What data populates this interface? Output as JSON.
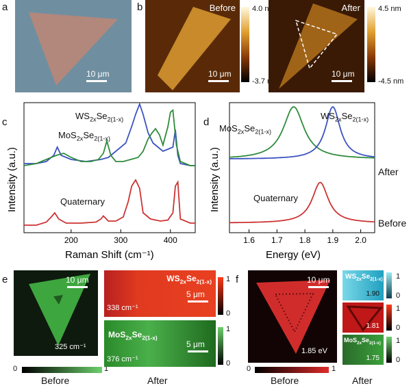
{
  "panels": {
    "a": {
      "label": "a",
      "scale": "10 μm"
    },
    "b": {
      "label": "b",
      "before_title": "Before",
      "after_title": "After",
      "scale_before": "10 μm",
      "scale_after": "10 μm",
      "cb_before_max": "4.0 nm",
      "cb_before_min": "-3.7 nm",
      "cb_after_max": "4.5 nm",
      "cb_after_min": "-4.5 nm"
    },
    "c": {
      "label": "c"
    },
    "d": {
      "label": "d"
    },
    "e": {
      "label": "e",
      "scale_main": "10 μm",
      "main_value": "325 cm⁻¹",
      "ws_value": "338 cm⁻¹",
      "mos_value": "376 cm⁻¹",
      "ws_scale": "5 μm",
      "mos_scale": "5 μm",
      "cb_min": "0",
      "cb_max": "1",
      "ws_cb_min": "0",
      "ws_cb_max": "1",
      "mos_cb_min": "0",
      "mos_cb_max": "1",
      "before": "Before",
      "after": "After"
    },
    "f": {
      "label": "f",
      "scale_main": "10 μm",
      "main_value": "1.85 eV",
      "v1": "1.90",
      "v2": "1.81",
      "v3": "1.75",
      "cb_min": "0",
      "cb_max": "1",
      "cb1_max": "1",
      "cb1_min": "0",
      "cb2_max": "1",
      "cb2_min": "0",
      "cb3_max": "1",
      "cb3_min": "0",
      "before": "Before",
      "after": "After"
    }
  },
  "labels": {
    "ws_main": "WS",
    "ws_sub1": "2x",
    "ws_mid": "Se",
    "ws_sub2": "2(1-x)",
    "mos_main": "MoS",
    "mos_sub1": "2x",
    "mos_mid": "Se",
    "mos_sub2": "2(1-x)"
  },
  "chart_data": [
    {
      "type": "line",
      "title": "",
      "xlabel": "Raman Shift (cm⁻¹)",
      "ylabel": "Intensity (a.u.)",
      "xlim": [
        105,
        450
      ],
      "xticks": [
        "200",
        "300",
        "400"
      ],
      "annotations": [
        "WS2xSe2(1-x)",
        "MoS2xSe2(1-x)",
        "Quaternary"
      ],
      "series": [
        {
          "name": "WS2xSe2(1-x)",
          "color": "#3b52c0",
          "x": [
            105,
            130,
            150,
            165,
            172,
            180,
            200,
            230,
            260,
            275,
            290,
            310,
            322,
            330,
            338,
            345,
            355,
            365,
            375,
            385,
            395,
            405,
            410,
            415,
            420,
            440,
            450
          ],
          "y": [
            0.62,
            0.62,
            0.64,
            0.7,
            0.78,
            0.7,
            0.66,
            0.64,
            0.66,
            0.68,
            0.74,
            0.82,
            0.98,
            1.1,
            1.2,
            1.1,
            0.92,
            0.82,
            0.78,
            0.74,
            0.76,
            0.78,
            0.95,
            0.7,
            0.62,
            0.6,
            0.6
          ]
        },
        {
          "name": "MoS2xSe2(1-x)",
          "color": "#2e8b3c",
          "x": [
            105,
            130,
            150,
            170,
            185,
            200,
            220,
            240,
            255,
            265,
            272,
            280,
            290,
            305,
            320,
            335,
            345,
            355,
            363,
            370,
            378,
            385,
            395,
            400,
            405,
            412,
            420,
            440,
            450
          ],
          "y": [
            0.6,
            0.62,
            0.66,
            0.7,
            0.72,
            0.68,
            0.64,
            0.64,
            0.66,
            0.72,
            0.84,
            0.7,
            0.64,
            0.64,
            0.66,
            0.68,
            0.74,
            0.86,
            0.92,
            0.96,
            0.9,
            0.8,
            0.98,
            1.12,
            1.14,
            0.8,
            0.64,
            0.6,
            0.6
          ]
        },
        {
          "name": "Quaternary",
          "color": "#cc3333",
          "x": [
            105,
            130,
            150,
            160,
            167,
            175,
            190,
            220,
            250,
            260,
            265,
            275,
            290,
            305,
            315,
            322,
            330,
            338,
            345,
            360,
            380,
            395,
            405,
            410,
            415,
            420,
            440,
            450
          ],
          "y": [
            0.02,
            0.02,
            0.05,
            0.1,
            0.14,
            0.08,
            0.04,
            0.04,
            0.05,
            0.08,
            0.11,
            0.06,
            0.06,
            0.1,
            0.25,
            0.4,
            0.46,
            0.38,
            0.14,
            0.08,
            0.06,
            0.07,
            0.14,
            0.4,
            0.44,
            0.08,
            0.04,
            0.04
          ]
        }
      ]
    },
    {
      "type": "line",
      "title": "",
      "xlabel": "Energy (eV)",
      "ylabel": "Intensity (a.u.)",
      "xlim": [
        1.53,
        2.05
      ],
      "xticks": [
        "1.6",
        "1.7",
        "1.8",
        "1.9",
        "2.0"
      ],
      "annotations": [
        "MoS2xSe2(1-x)",
        "WS2xSe2(1-x)",
        "Quaternary",
        "After",
        "Before"
      ],
      "series": [
        {
          "name": "MoS2xSe2(1-x)",
          "color": "#2e8b3c",
          "peak": 1.76,
          "width": 0.045,
          "offset": 0.55,
          "amp": 0.45
        },
        {
          "name": "WS2xSe2(1-x)",
          "color": "#3b52c0",
          "peak": 1.9,
          "width": 0.032,
          "offset": 0.55,
          "amp": 0.45
        },
        {
          "name": "Quaternary",
          "color": "#cc3333",
          "peak": 1.855,
          "width": 0.035,
          "offset": 0.0,
          "amp": 0.35
        }
      ]
    }
  ],
  "colors": {
    "ws": "#3b52c0",
    "mos": "#2e8b3c",
    "quat": "#cc3333"
  }
}
